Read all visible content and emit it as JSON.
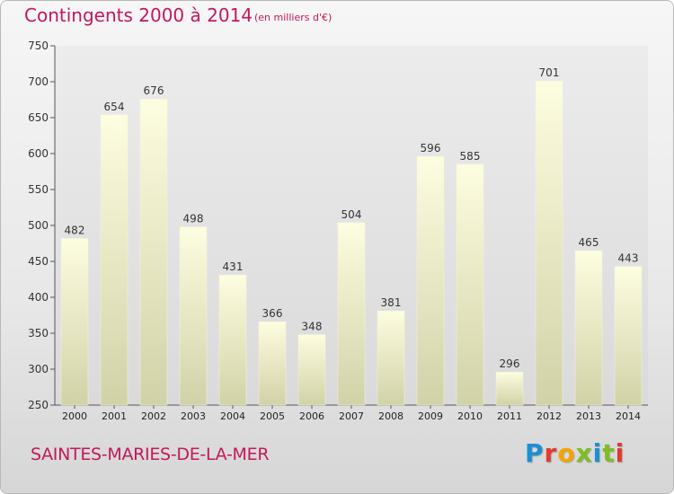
{
  "header": {
    "title": "Contingents 2000 à 2014",
    "subtitle": "(en milliers d'€)"
  },
  "footer": {
    "city": "SAINTES-MARIES-DE-LA-MER",
    "brand": "Proxiti",
    "brand_colors": [
      "#1a8fd6",
      "#e23b2e",
      "#f5a300",
      "#7cbf22",
      "#1a8fd6",
      "#7cbf22",
      "#e23b2e"
    ]
  },
  "colors": {
    "accent": "#c2185b",
    "bar_top": "#fdfde0",
    "bar_bottom": "#d2d2a8"
  },
  "chart_data": {
    "type": "bar",
    "categories": [
      "2000",
      "2001",
      "2002",
      "2003",
      "2004",
      "2005",
      "2006",
      "2007",
      "2008",
      "2009",
      "2010",
      "2011",
      "2012",
      "2013",
      "2014"
    ],
    "values": [
      482,
      654,
      676,
      498,
      431,
      366,
      348,
      504,
      381,
      596,
      585,
      296,
      701,
      465,
      443
    ],
    "ylim": [
      250,
      750
    ],
    "yticks": [
      250,
      300,
      350,
      400,
      450,
      500,
      550,
      600,
      650,
      700,
      750
    ],
    "grid": false,
    "data_labels": true
  }
}
